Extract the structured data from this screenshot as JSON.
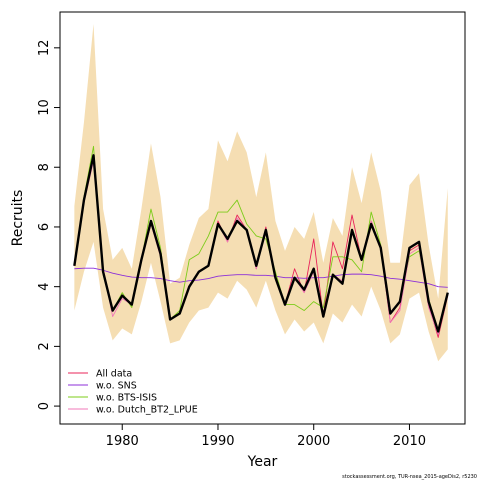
{
  "chart_data": {
    "type": "line",
    "title": "",
    "xlabel": "Year",
    "ylabel": "Recruits",
    "xlim": [
      1973.5,
      2015.8
    ],
    "ylim": [
      -0.6,
      13.2
    ],
    "xticks": [
      1980,
      1990,
      2000,
      2010
    ],
    "yticks": [
      0,
      2,
      4,
      6,
      8,
      10,
      12
    ],
    "grid": false,
    "legend_position": "bottom-left",
    "x": [
      1975,
      1976,
      1977,
      1978,
      1979,
      1980,
      1981,
      1982,
      1983,
      1984,
      1985,
      1986,
      1987,
      1988,
      1989,
      1990,
      1991,
      1992,
      1993,
      1994,
      1995,
      1996,
      1997,
      1998,
      1999,
      2000,
      2001,
      2002,
      2003,
      2004,
      2005,
      2006,
      2007,
      2008,
      2009,
      2010,
      2011,
      2012,
      2013,
      2014
    ],
    "band": {
      "color": "#f5deb3",
      "lower": [
        3.2,
        4.5,
        5.5,
        3.3,
        2.2,
        2.6,
        2.4,
        3.5,
        4.8,
        3.5,
        2.1,
        2.2,
        2.8,
        3.2,
        3.3,
        3.8,
        3.6,
        4.2,
        3.9,
        3.3,
        4.2,
        3.2,
        2.4,
        2.9,
        2.5,
        2.8,
        2.1,
        3.1,
        2.8,
        3.4,
        3.0,
        4.0,
        3.2,
        2.1,
        2.4,
        3.6,
        3.8,
        2.5,
        1.5,
        1.9
      ],
      "upper": [
        6.7,
        9.5,
        12.8,
        6.6,
        4.9,
        5.3,
        4.6,
        6.6,
        8.8,
        7.0,
        4.1,
        4.3,
        5.4,
        6.3,
        6.6,
        8.9,
        8.2,
        9.2,
        8.5,
        7.0,
        8.5,
        6.2,
        5.2,
        6.0,
        5.6,
        6.5,
        4.8,
        6.3,
        5.7,
        8.0,
        6.8,
        8.5,
        7.2,
        4.8,
        4.8,
        7.4,
        7.8,
        5.4,
        3.6,
        7.3
      ]
    },
    "series": [
      {
        "name": "All data",
        "color": "#e8245a",
        "width": 0.9,
        "values": [
          4.7,
          6.9,
          8.3,
          4.6,
          3.2,
          3.7,
          3.4,
          4.9,
          6.1,
          5.1,
          2.9,
          3.1,
          4.0,
          4.5,
          4.7,
          6.2,
          5.5,
          6.4,
          5.9,
          4.6,
          6.0,
          4.3,
          3.4,
          4.6,
          3.8,
          5.6,
          3.0,
          5.5,
          4.6,
          6.4,
          4.9,
          6.2,
          5.3,
          2.8,
          3.3,
          5.2,
          5.4,
          3.4,
          2.3,
          3.7
        ]
      },
      {
        "name": "w.o. SNS",
        "color": "#8c2fd8",
        "width": 0.9,
        "values": [
          4.6,
          4.62,
          4.62,
          4.55,
          4.45,
          4.38,
          4.32,
          4.3,
          4.3,
          4.27,
          4.2,
          4.15,
          4.2,
          4.22,
          4.27,
          4.35,
          4.38,
          4.4,
          4.4,
          4.38,
          4.38,
          4.35,
          4.3,
          4.3,
          4.28,
          4.3,
          4.3,
          4.35,
          4.4,
          4.42,
          4.42,
          4.4,
          4.35,
          4.28,
          4.25,
          4.2,
          4.15,
          4.1,
          4.0,
          3.98
        ]
      },
      {
        "name": "w.o. BTS-ISIS",
        "color": "#7ccc1a",
        "width": 0.9,
        "values": [
          4.8,
          7.0,
          8.7,
          4.4,
          3.2,
          3.8,
          3.3,
          4.9,
          6.6,
          5.3,
          2.9,
          3.2,
          4.9,
          5.1,
          5.7,
          6.5,
          6.5,
          6.9,
          6.1,
          5.7,
          5.6,
          4.5,
          3.4,
          3.4,
          3.2,
          3.5,
          3.3,
          5.0,
          5.0,
          4.9,
          4.5,
          6.5,
          5.4,
          3.1,
          3.5,
          5.0,
          5.2,
          3.6,
          2.5,
          3.7
        ]
      },
      {
        "name": "w.o. Dutch_BT2_LPUE",
        "color": "#f07ab8",
        "width": 0.9,
        "values": [
          4.7,
          6.8,
          8.2,
          4.6,
          3.0,
          3.6,
          3.4,
          4.9,
          6.1,
          5.0,
          2.9,
          3.1,
          4.0,
          4.5,
          4.7,
          6.1,
          5.5,
          6.3,
          5.9,
          4.6,
          5.9,
          4.3,
          3.4,
          4.3,
          3.8,
          4.5,
          3.0,
          4.4,
          4.2,
          5.8,
          4.9,
          6.2,
          5.3,
          2.8,
          3.2,
          5.1,
          5.3,
          3.3,
          2.4,
          3.7
        ]
      },
      {
        "name": "",
        "color": "#000000",
        "width": 2.4,
        "values": [
          4.7,
          6.9,
          8.4,
          4.5,
          3.2,
          3.7,
          3.4,
          4.9,
          6.2,
          5.1,
          2.9,
          3.1,
          4.0,
          4.5,
          4.7,
          6.1,
          5.6,
          6.2,
          5.9,
          4.7,
          5.9,
          4.3,
          3.4,
          4.3,
          3.9,
          4.6,
          3.0,
          4.4,
          4.1,
          5.9,
          4.9,
          6.1,
          5.3,
          3.1,
          3.5,
          5.3,
          5.5,
          3.5,
          2.5,
          3.8
        ]
      }
    ]
  },
  "footer_note": "stockassessment.org, TUR-nsea_2015-ageDis2, r5230"
}
